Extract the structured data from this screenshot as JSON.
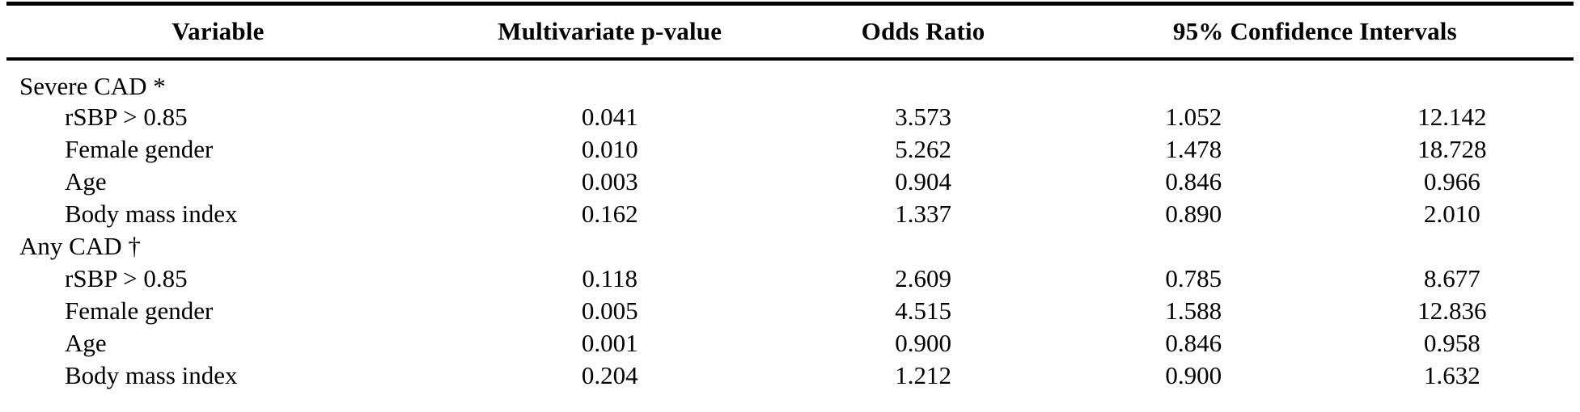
{
  "table": {
    "headers": {
      "variable": "Variable",
      "p_value": "Multivariate p-value",
      "odds_ratio": "Odds Ratio",
      "confidence_intervals": "95% Confidence Intervals"
    },
    "rows": [
      {
        "variable": "Severe CAD *",
        "group": true,
        "p_value": "",
        "odds_ratio": "",
        "ci_lower": "",
        "ci_upper": ""
      },
      {
        "variable": "rSBP > 0.85",
        "group": false,
        "p_value": "0.041",
        "odds_ratio": "3.573",
        "ci_lower": "1.052",
        "ci_upper": "12.142"
      },
      {
        "variable": "Female gender",
        "group": false,
        "p_value": "0.010",
        "odds_ratio": "5.262",
        "ci_lower": "1.478",
        "ci_upper": "18.728"
      },
      {
        "variable": "Age",
        "group": false,
        "p_value": "0.003",
        "odds_ratio": "0.904",
        "ci_lower": "0.846",
        "ci_upper": "0.966"
      },
      {
        "variable": "Body mass index",
        "group": false,
        "p_value": "0.162",
        "odds_ratio": "1.337",
        "ci_lower": "0.890",
        "ci_upper": "2.010"
      },
      {
        "variable": "Any CAD †",
        "group": true,
        "p_value": "",
        "odds_ratio": "",
        "ci_lower": "",
        "ci_upper": ""
      },
      {
        "variable": "rSBP > 0.85",
        "group": false,
        "p_value": "0.118",
        "odds_ratio": "2.609",
        "ci_lower": "0.785",
        "ci_upper": "8.677"
      },
      {
        "variable": "Female gender",
        "group": false,
        "p_value": "0.005",
        "odds_ratio": "4.515",
        "ci_lower": "1.588",
        "ci_upper": "12.836"
      },
      {
        "variable": "Age",
        "group": false,
        "p_value": "0.001",
        "odds_ratio": "0.900",
        "ci_lower": "0.846",
        "ci_upper": "0.958"
      },
      {
        "variable": "Body mass index",
        "group": false,
        "p_value": "0.204",
        "odds_ratio": "1.212",
        "ci_lower": "0.900",
        "ci_upper": "1.632"
      }
    ],
    "colors": {
      "text": "#000000",
      "rule": "#000000",
      "background": "#ffffff"
    }
  }
}
